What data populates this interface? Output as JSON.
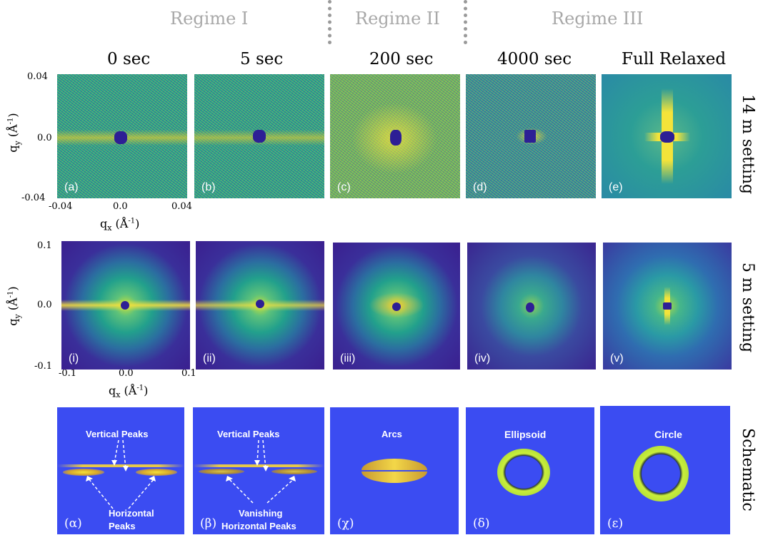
{
  "regimes": [
    "Regime I",
    "Regime II",
    "Regime III"
  ],
  "times": [
    "0 sec",
    "5 sec",
    "200 sec",
    "4000 sec",
    "Full Relaxed"
  ],
  "side_labels": [
    "14 m setting",
    "5 m setting",
    "Schematic"
  ],
  "row1": {
    "labels": [
      "(a)",
      "(b)",
      "(c)",
      "(d)",
      "(e)"
    ],
    "y_ticks": [
      "0.04",
      "0.0",
      "-0.04"
    ],
    "x_ticks": [
      "-0.04",
      "0.0",
      "0.04"
    ],
    "y_axis": "q",
    "y_axis_sub": "y",
    "y_axis_unit": " (Å",
    "y_axis_exp": "-1",
    "x_axis": "q",
    "x_axis_sub": "x",
    "x_axis_unit": " (Å",
    "x_axis_exp": "-1"
  },
  "row2": {
    "labels": [
      "(i)",
      "(ii)",
      "(iii)",
      "(iv)",
      "(v)"
    ],
    "y_ticks": [
      "0.1",
      "0.0",
      "-0.1"
    ],
    "x_ticks": [
      "-0.1",
      "0.0",
      "0.1"
    ]
  },
  "row3": {
    "labels": [
      "(α)",
      "(β)",
      "(χ)",
      "(δ)",
      "(ε)"
    ],
    "alpha_top": "Vertical Peaks",
    "alpha_bottom": [
      "Horizontal",
      "Peaks"
    ],
    "beta_top": "Vertical Peaks",
    "beta_bottom": [
      "Vanishing",
      "Horizontal Peaks"
    ],
    "chi": "Arcs",
    "delta": "Ellipsoid",
    "epsilon": "Circle"
  },
  "colors": {
    "schematic_bg": "#3b4cf2",
    "beamstop": "#2d1f95",
    "regime_text": "#a8a8a8"
  }
}
